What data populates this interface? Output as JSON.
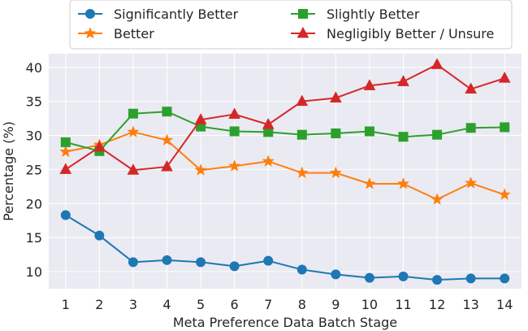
{
  "chart_data": {
    "type": "line",
    "title": "",
    "xlabel": "Meta Preference Data Batch Stage",
    "ylabel": "Percentage (%)",
    "x": [
      1,
      2,
      3,
      4,
      5,
      6,
      7,
      8,
      9,
      10,
      11,
      12,
      13,
      14
    ],
    "xlim": [
      0.5,
      14.5
    ],
    "ylim": [
      7.5,
      42
    ],
    "yticks": [
      10,
      15,
      20,
      25,
      30,
      35,
      40
    ],
    "grid": true,
    "background": "#eaeaf2",
    "legend_position": "top",
    "series": [
      {
        "name": "Significantly Better",
        "color": "#1f77b4",
        "marker": "circle",
        "values": [
          18.3,
          15.3,
          11.4,
          11.7,
          11.4,
          10.8,
          11.6,
          10.3,
          9.6,
          9.1,
          9.3,
          8.8,
          9.0,
          9.0
        ]
      },
      {
        "name": "Better",
        "color": "#ff7f0e",
        "marker": "star",
        "values": [
          27.6,
          28.6,
          30.5,
          29.3,
          24.9,
          25.5,
          26.2,
          24.5,
          24.5,
          22.9,
          22.9,
          20.6,
          23.0,
          21.3
        ]
      },
      {
        "name": "Slightly Better",
        "color": "#2ca02c",
        "marker": "square",
        "values": [
          29.0,
          27.7,
          33.2,
          33.5,
          31.3,
          30.6,
          30.5,
          30.1,
          30.3,
          30.6,
          29.8,
          30.1,
          31.1,
          31.2
        ]
      },
      {
        "name": "Negligibly Better / Unsure",
        "color": "#d62728",
        "marker": "triangle",
        "values": [
          25.0,
          28.3,
          24.9,
          25.4,
          32.3,
          33.1,
          31.6,
          35.0,
          35.5,
          37.3,
          37.9,
          40.4,
          36.8,
          38.4
        ]
      }
    ]
  }
}
